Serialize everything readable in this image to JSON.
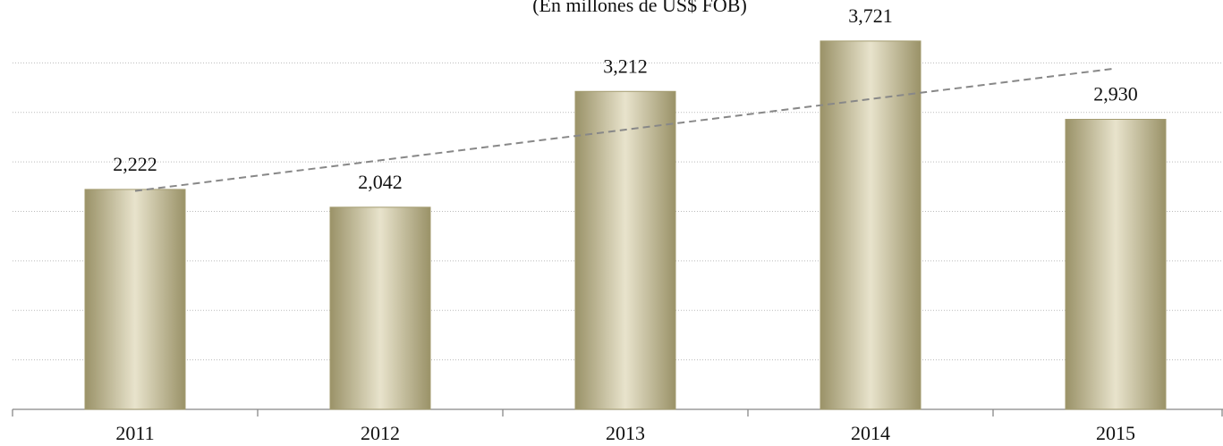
{
  "chart_data": {
    "type": "bar",
    "subtitle": "(En millones de US$ FOB)",
    "categories": [
      "2011",
      "2012",
      "2013",
      "2014",
      "2015"
    ],
    "values": [
      2222,
      2042,
      3212,
      3721,
      2930
    ],
    "value_labels": [
      "2,222",
      "2,042",
      "3,212",
      "3,721",
      "2,930"
    ],
    "color": "#a39b6f",
    "ylim": [
      0,
      4000
    ],
    "yticks": [
      0,
      500,
      1000,
      1500,
      2000,
      2500,
      3000,
      3500
    ],
    "grid": true,
    "trendline": true
  }
}
